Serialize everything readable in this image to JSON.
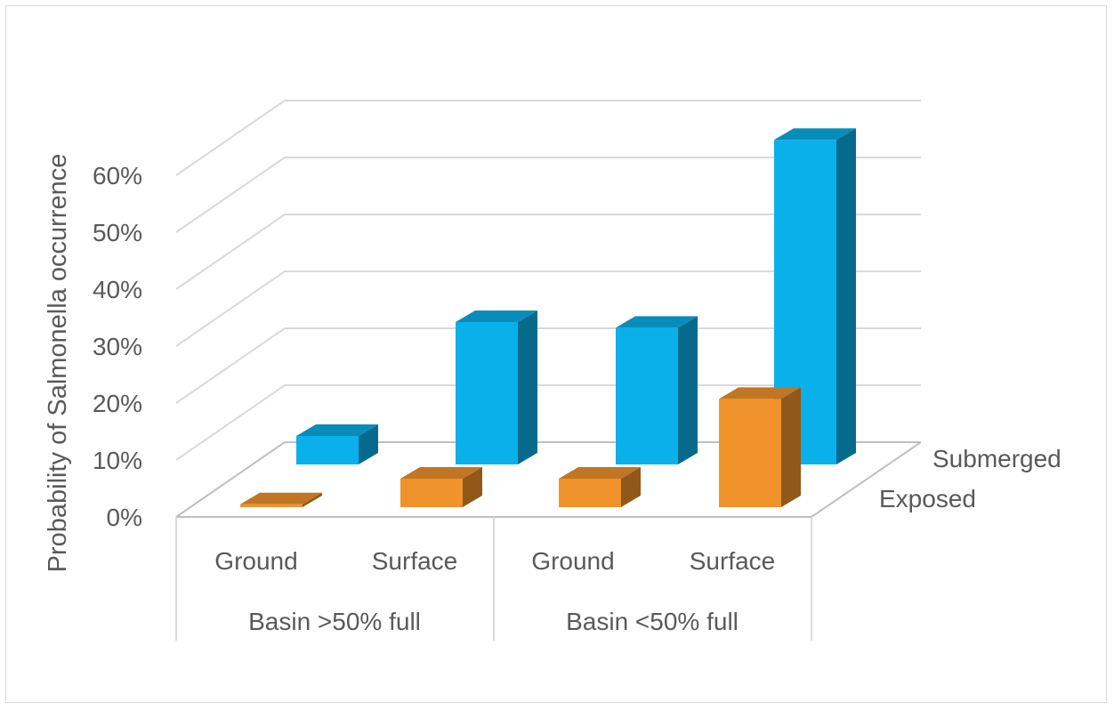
{
  "chart_data": {
    "type": "bar",
    "subtype": "3d-clustered-column",
    "title": "",
    "ylabel": "Probability of Salmonella occurrence",
    "xlabel": "",
    "ylim": [
      0,
      0.6
    ],
    "y_ticks": [
      "0%",
      "10%",
      "20%",
      "30%",
      "40%",
      "50%",
      "60%"
    ],
    "categories": [
      "Ground",
      "Surface",
      "Ground",
      "Surface"
    ],
    "category_groups": [
      {
        "label": "Basin >50% full",
        "categories": [
          "Ground",
          "Surface"
        ]
      },
      {
        "label": "Basin <50% full",
        "categories": [
          "Ground",
          "Surface"
        ]
      }
    ],
    "series": [
      {
        "name": "Exposed",
        "color": "#f0932a",
        "values": [
          0.005,
          0.05,
          0.05,
          0.19
        ]
      },
      {
        "name": "Submerged",
        "color": "#0ab0ea",
        "values": [
          0.05,
          0.25,
          0.24,
          0.57
        ]
      }
    ],
    "grid": true,
    "legend": "depth-axis-right"
  }
}
